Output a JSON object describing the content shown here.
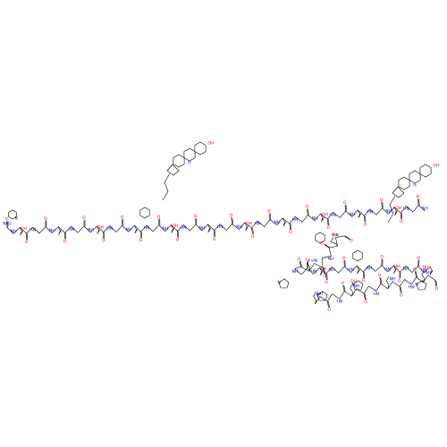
{
  "atoms": [
    "O",
    "HN",
    "NH",
    "OH",
    "H",
    "N",
    "NH2"
  ]
}
